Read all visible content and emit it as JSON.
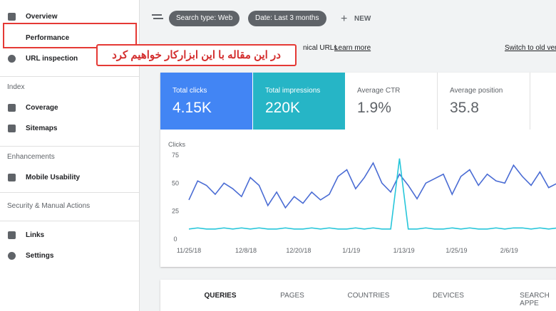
{
  "sidebar": {
    "top_items": [
      "Overview",
      "Performance",
      "URL inspection"
    ],
    "sections": [
      {
        "title": "Index",
        "items": [
          "Coverage",
          "Sitemaps"
        ]
      },
      {
        "title": "Enhancements",
        "items": [
          "Mobile Usability"
        ]
      },
      {
        "title": "Security & Manual Actions",
        "items": []
      }
    ],
    "bottom_items": [
      "Links",
      "Settings"
    ]
  },
  "toolbar": {
    "chips": [
      "Search type: Web",
      "Date: Last 3 months"
    ],
    "new_button": "NEW"
  },
  "info_bar": {
    "text": "nical URLs",
    "link": "Learn more",
    "switch": "Switch to old ver"
  },
  "annotation": "در این مقاله با این ابزارکار خواهیم کرد",
  "metrics": [
    {
      "label": "Total clicks",
      "value": "4.15K"
    },
    {
      "label": "Total impressions",
      "value": "220K"
    },
    {
      "label": "Average CTR",
      "value": "1.9%"
    },
    {
      "label": "Average position",
      "value": "35.8"
    }
  ],
  "chart_data": {
    "type": "line",
    "y_label": "Clicks",
    "x": [
      0,
      2,
      4,
      6,
      8,
      10,
      12,
      14,
      16,
      18,
      20,
      22,
      24,
      26,
      28,
      30,
      32,
      34,
      36,
      38,
      40,
      42,
      44,
      46,
      48,
      50,
      52,
      54,
      56,
      58,
      60,
      62,
      64,
      66,
      68,
      70,
      72,
      74,
      76,
      78,
      80,
      82,
      84
    ],
    "series": [
      {
        "name": "Clicks",
        "color": "#4a6cd4",
        "values": [
          35,
          52,
          48,
          40,
          50,
          45,
          38,
          55,
          48,
          30,
          42,
          28,
          38,
          32,
          42,
          35,
          40,
          56,
          62,
          45,
          55,
          68,
          50,
          42,
          58,
          48,
          36,
          50,
          54,
          58,
          40,
          56,
          62,
          48,
          58,
          52,
          50,
          66,
          56,
          48,
          60,
          46,
          50
        ]
      },
      {
        "name": "Impressions",
        "color": "#26c6da",
        "values": [
          9,
          10,
          9,
          9,
          10,
          9,
          10,
          9,
          10,
          9,
          9,
          10,
          9,
          9,
          10,
          9,
          10,
          9,
          9,
          10,
          9,
          10,
          9,
          9,
          72,
          9,
          9,
          10,
          9,
          9,
          10,
          9,
          10,
          9,
          9,
          10,
          9,
          10,
          10,
          9,
          10,
          9,
          10
        ]
      }
    ],
    "xlim": [
      0,
      84
    ],
    "ylim": [
      0,
      75
    ],
    "yticks": [
      0,
      25,
      50,
      75
    ],
    "xticks": [
      {
        "value": 0,
        "label": "11/25/18"
      },
      {
        "value": 13,
        "label": "12/8/18"
      },
      {
        "value": 25,
        "label": "12/20/18"
      },
      {
        "value": 37,
        "label": "1/1/19"
      },
      {
        "value": 49,
        "label": "1/13/19"
      },
      {
        "value": 61,
        "label": "1/25/19"
      },
      {
        "value": 73,
        "label": "2/6/19"
      }
    ]
  },
  "tabs": [
    "QUERIES",
    "PAGES",
    "COUNTRIES",
    "DEVICES",
    "SEARCH APPE"
  ]
}
